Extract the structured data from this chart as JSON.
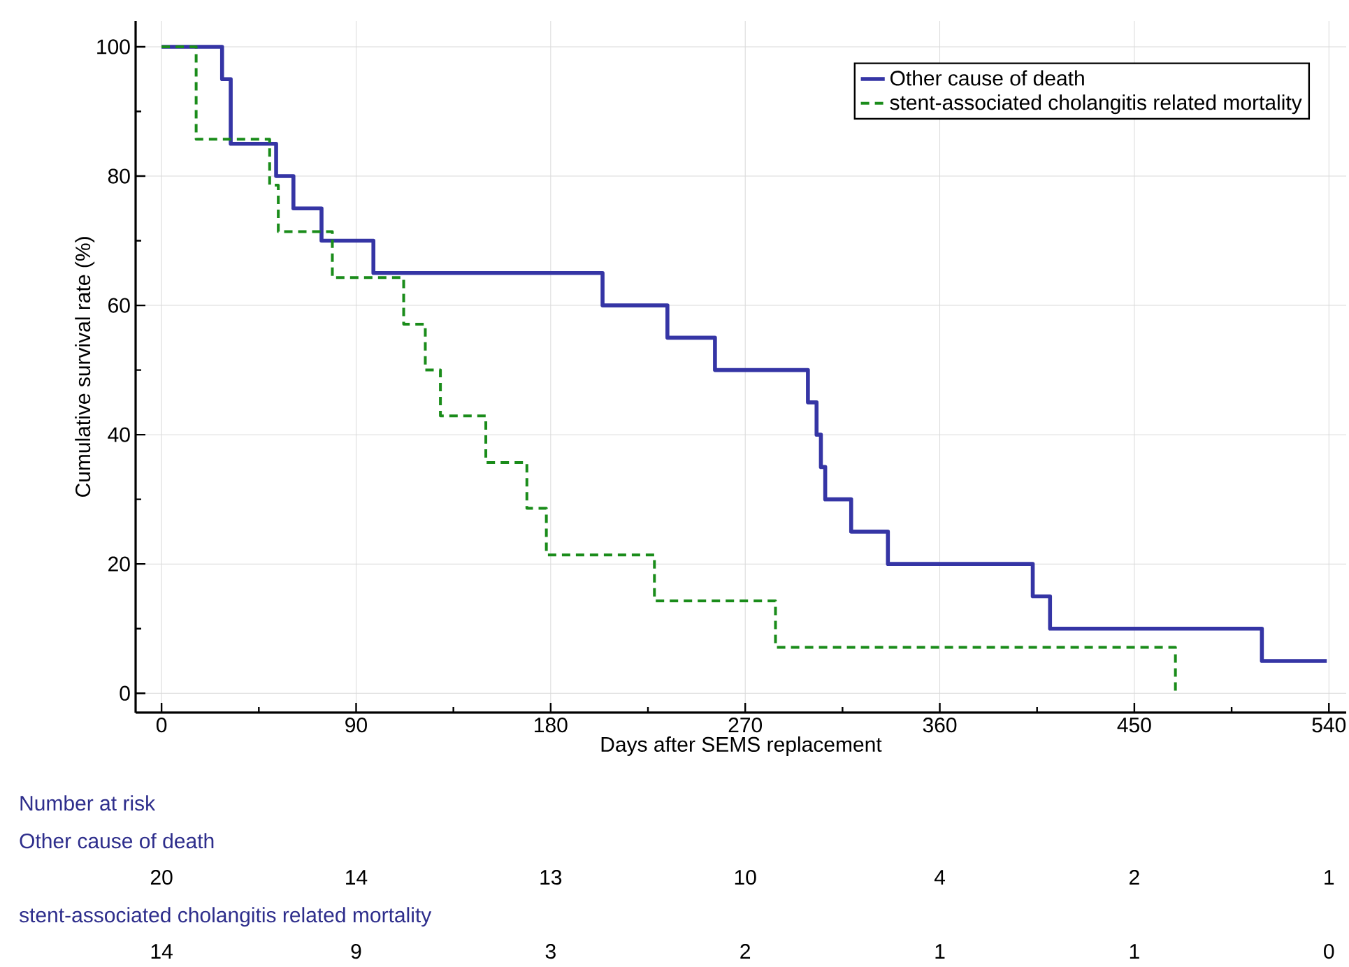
{
  "chart_data": {
    "type": "step",
    "xlabel": "Days after SEMS replacement",
    "ylabel": "Cumulative survival rate (%)",
    "xlim": [
      -12,
      548
    ],
    "ylim": [
      -3,
      104
    ],
    "xticks": [
      0,
      90,
      180,
      270,
      360,
      450,
      540
    ],
    "yticks": [
      0,
      20,
      40,
      60,
      80,
      100
    ],
    "grid": true,
    "legend": "top right",
    "series": [
      {
        "name": "Other cause of death",
        "color": "#3535a5",
        "line_style": "solid",
        "x": [
          0,
          28,
          32,
          53,
          61,
          74,
          98,
          204,
          234,
          256,
          299,
          303,
          305,
          307,
          319,
          336,
          403,
          411,
          509,
          539
        ],
        "values": [
          100,
          95,
          85,
          80,
          75,
          70,
          65,
          60,
          55,
          50,
          45,
          40,
          35,
          30,
          25,
          20,
          15,
          10,
          5,
          5
        ]
      },
      {
        "name": "stent-associated cholangitis related mortality",
        "color": "#1a8c1a",
        "line_style": "dashed",
        "x": [
          0,
          16,
          50,
          54,
          79,
          112,
          122,
          129,
          150,
          169,
          178,
          228,
          284,
          469
        ],
        "values": [
          100,
          85.7,
          78.6,
          71.4,
          64.3,
          57.1,
          50,
          42.9,
          35.7,
          28.6,
          21.4,
          14.3,
          7.1,
          0
        ]
      }
    ],
    "annotations": [
      "Number at risk",
      "Other cause of death",
      "20",
      "14",
      "13",
      "10",
      "4",
      "2",
      "1",
      "stent-associated cholangitis related mortality",
      "14",
      "9",
      "3",
      "2",
      "1",
      "1",
      "0"
    ]
  }
}
